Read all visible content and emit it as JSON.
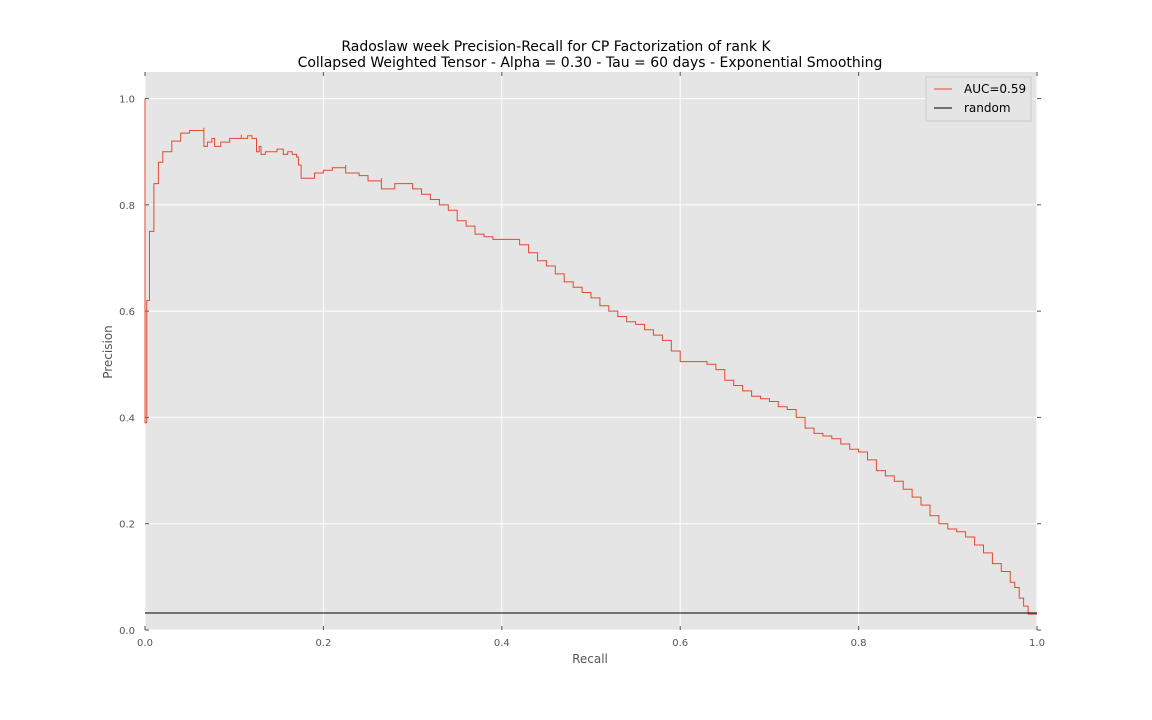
{
  "chart_data": {
    "type": "line",
    "title": [
      "Radoslaw week Precision-Recall for CP Factorization of rank K",
      "Collapsed Weighted Tensor -  Alpha = 0.30 - Tau = 60 days - Exponential Smoothing"
    ],
    "xlabel": "Recall",
    "ylabel": "Precision",
    "xlim": [
      0.0,
      1.0
    ],
    "ylim": [
      0.0,
      1.05
    ],
    "xticks": [
      "0.0",
      "0.2",
      "0.4",
      "0.6",
      "0.8",
      "1.0"
    ],
    "yticks": [
      "0.0",
      "0.2",
      "0.4",
      "0.6",
      "0.8",
      "1.0"
    ],
    "grid": true,
    "legend_position": "top-right",
    "series": [
      {
        "name": "AUC=0.59",
        "color": "#e24a33",
        "x": [
          0.0,
          0.0,
          0.0,
          0.002,
          0.005,
          0.01,
          0.015,
          0.02,
          0.03,
          0.04,
          0.05,
          0.066,
          0.066,
          0.07,
          0.075,
          0.078,
          0.078,
          0.085,
          0.095,
          0.108,
          0.108,
          0.115,
          0.12,
          0.125,
          0.128,
          0.13,
          0.135,
          0.14,
          0.148,
          0.155,
          0.16,
          0.165,
          0.17,
          0.172,
          0.175,
          0.175,
          0.19,
          0.2,
          0.21,
          0.225,
          0.225,
          0.24,
          0.25,
          0.265,
          0.265,
          0.28,
          0.3,
          0.31,
          0.32,
          0.33,
          0.34,
          0.35,
          0.36,
          0.37,
          0.38,
          0.39,
          0.4,
          0.42,
          0.43,
          0.44,
          0.45,
          0.46,
          0.47,
          0.48,
          0.49,
          0.5,
          0.51,
          0.52,
          0.53,
          0.54,
          0.55,
          0.56,
          0.57,
          0.58,
          0.59,
          0.6,
          0.61,
          0.62,
          0.63,
          0.64,
          0.65,
          0.66,
          0.67,
          0.68,
          0.69,
          0.7,
          0.71,
          0.72,
          0.73,
          0.74,
          0.75,
          0.76,
          0.77,
          0.78,
          0.79,
          0.8,
          0.81,
          0.82,
          0.83,
          0.84,
          0.85,
          0.86,
          0.87,
          0.88,
          0.89,
          0.9,
          0.91,
          0.92,
          0.93,
          0.94,
          0.95,
          0.96,
          0.97,
          0.975,
          0.98,
          0.985,
          0.99,
          0.995,
          1.0
        ],
        "y": [
          1.0,
          0.39,
          0.39,
          0.62,
          0.75,
          0.84,
          0.88,
          0.9,
          0.92,
          0.935,
          0.94,
          0.945,
          0.91,
          0.918,
          0.925,
          0.91,
          0.91,
          0.918,
          0.925,
          0.932,
          0.925,
          0.93,
          0.925,
          0.9,
          0.91,
          0.895,
          0.9,
          0.9,
          0.905,
          0.895,
          0.9,
          0.895,
          0.89,
          0.875,
          0.855,
          0.85,
          0.86,
          0.865,
          0.87,
          0.875,
          0.86,
          0.855,
          0.845,
          0.85,
          0.83,
          0.84,
          0.83,
          0.82,
          0.81,
          0.8,
          0.79,
          0.77,
          0.76,
          0.745,
          0.74,
          0.735,
          0.735,
          0.725,
          0.71,
          0.695,
          0.685,
          0.67,
          0.655,
          0.645,
          0.635,
          0.625,
          0.61,
          0.6,
          0.59,
          0.58,
          0.575,
          0.565,
          0.555,
          0.545,
          0.525,
          0.505,
          0.505,
          0.505,
          0.5,
          0.49,
          0.47,
          0.46,
          0.45,
          0.44,
          0.435,
          0.43,
          0.42,
          0.415,
          0.4,
          0.38,
          0.37,
          0.365,
          0.36,
          0.35,
          0.34,
          0.335,
          0.32,
          0.3,
          0.29,
          0.28,
          0.265,
          0.25,
          0.235,
          0.215,
          0.2,
          0.19,
          0.185,
          0.175,
          0.16,
          0.145,
          0.125,
          0.11,
          0.09,
          0.08,
          0.06,
          0.045,
          0.03,
          0.03,
          0.03
        ]
      },
      {
        "name": "random",
        "color": "#000000",
        "x": [
          0.0,
          1.0
        ],
        "y": [
          0.032,
          0.032
        ]
      }
    ]
  },
  "colors": {
    "plot_background": "#e5e5e5",
    "grid": "#ffffff",
    "tick_label": "#555555"
  }
}
